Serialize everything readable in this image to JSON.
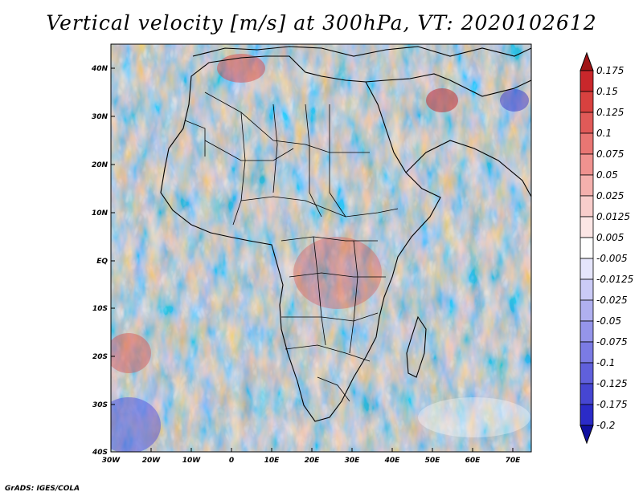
{
  "title": "Vertical velocity [m/s] at 300hPa, VT: 2020102612",
  "credit": "GrADS: IGES/COLA",
  "lat_labels": [
    "40N",
    "30N",
    "20N",
    "10N",
    "EQ",
    "10S",
    "20S",
    "30S",
    "40S"
  ],
  "lon_labels": [
    "30W",
    "20W",
    "10W",
    "0",
    "10E",
    "20E",
    "30E",
    "40E",
    "50E",
    "60E",
    "70E"
  ],
  "colorbar": {
    "levels": [
      "0.175",
      "0.15",
      "0.125",
      "0.1",
      "0.075",
      "0.05",
      "0.025",
      "0.0125",
      "0.005",
      "-0.005",
      "-0.0125",
      "-0.025",
      "-0.05",
      "-0.075",
      "-0.1",
      "-0.125",
      "-0.175",
      "-0.2"
    ],
    "colors": [
      "#b0161a",
      "#c9272b",
      "#d8413f",
      "#e05a58",
      "#e87673",
      "#ef928f",
      "#f4b0ad",
      "#f8cdcb",
      "#fce6e5",
      "#ffffff",
      "#e5e5fb",
      "#cbcbf6",
      "#b0b0f0",
      "#9595ea",
      "#7b7be4",
      "#6060dc",
      "#4646d2",
      "#2b2bc8",
      "#1515a8"
    ],
    "top_color": "#a01416",
    "bottom_color": "#1010a0"
  }
}
